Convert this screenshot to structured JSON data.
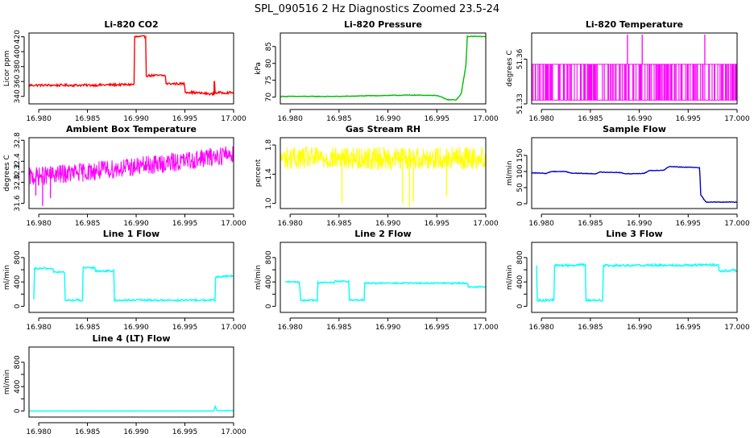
{
  "figure": {
    "title": "SPL_090516  2 Hz Diagnostics Zoomed 23.5-24"
  },
  "chart_data": [
    {
      "type": "line",
      "title": "Li-820 CO2",
      "xlabel": "",
      "ylabel": "Licor ppm",
      "color": "#ff0000",
      "style": "noisy",
      "xlim": [
        16.979,
        17.0
      ],
      "ylim": [
        330,
        425
      ],
      "xticks": [
        16.98,
        16.985,
        16.99,
        16.995,
        17.0
      ],
      "xtick_labels": [
        "16.980",
        "16.985",
        "16.990",
        "16.995",
        "17.000"
      ],
      "yticks": [
        340,
        360,
        380,
        400,
        420
      ],
      "ytick_labels": [
        "340",
        "360",
        "380",
        "400",
        "420"
      ],
      "series": [
        {
          "name": "CO2",
          "x": [
            16.979,
            16.98,
            16.985,
            16.9898,
            16.98981,
            16.991,
            16.99101,
            16.993,
            16.99301,
            16.995,
            16.99501,
            16.998,
            16.99801,
            16.9981,
            16.99811,
            17.0
          ],
          "y": [
            355,
            355,
            355,
            356,
            420,
            420,
            368,
            368,
            357,
            357,
            346,
            343,
            360,
            360,
            345,
            345
          ],
          "noise": 1.5
        }
      ],
      "spikes": [
        {
          "x": 16.998,
          "y": 360
        }
      ]
    },
    {
      "type": "line",
      "title": "Li-820 Pressure",
      "xlabel": "",
      "ylabel": "kPa",
      "color": "#00bb00",
      "style": "line",
      "xlim": [
        16.979,
        17.0
      ],
      "ylim": [
        68,
        89
      ],
      "xticks": [
        16.98,
        16.985,
        16.99,
        16.995,
        17.0
      ],
      "xtick_labels": [
        "16.980",
        "16.985",
        "16.990",
        "16.995",
        "17.000"
      ],
      "yticks": [
        70,
        75,
        80,
        85
      ],
      "ytick_labels": [
        "70",
        "75",
        "80",
        "85"
      ],
      "series": [
        {
          "name": "Pressure",
          "x": [
            16.979,
            16.985,
            16.988,
            16.9925,
            16.995,
            16.996,
            16.99601,
            16.997,
            16.9975,
            16.998,
            16.9981,
            16.999,
            17.0
          ],
          "y": [
            70.2,
            70.2,
            70.4,
            70.6,
            70.5,
            69.4,
            69.2,
            69.2,
            71,
            80,
            88,
            88,
            88
          ],
          "noise": 0.1
        }
      ],
      "spikes": []
    },
    {
      "type": "line",
      "title": "Li-820 Temperature",
      "xlabel": "",
      "ylabel": "degrees C",
      "color": "#ff00ff",
      "style": "alternating",
      "xlim": [
        16.979,
        17.0
      ],
      "ylim": [
        51.33,
        51.3775
      ],
      "xticks": [
        16.98,
        16.985,
        16.99,
        16.995,
        17.0
      ],
      "xtick_labels": [
        "16.980",
        "16.985",
        "16.990",
        "16.995",
        "17.000"
      ],
      "yticks": [
        51.33,
        51.36
      ],
      "ytick_labels": [
        "51.33",
        "51.36"
      ],
      "series": [
        {
          "name": "Temperature",
          "x": [
            16.979,
            17.0
          ],
          "y": [
            51.3565,
            51.3565
          ],
          "low": 51.3325,
          "noise": 0
        }
      ],
      "spikes": [
        {
          "x": 16.9888,
          "y": 51.3765
        },
        {
          "x": 16.9903,
          "y": 51.3765
        },
        {
          "x": 16.9967,
          "y": 51.3765
        }
      ]
    },
    {
      "type": "line",
      "title": "Ambient Box Temperature",
      "xlabel": "",
      "ylabel": "degrees C",
      "color": "#ff00ff",
      "style": "band",
      "xlim": [
        16.979,
        17.0
      ],
      "ylim": [
        31.5,
        32.85
      ],
      "xticks": [
        16.98,
        16.985,
        16.99,
        16.995,
        17.0
      ],
      "xtick_labels": [
        "16.980",
        "16.985",
        "16.990",
        "16.995",
        "17.000"
      ],
      "yticks": [
        31.6,
        32.0,
        32.2,
        32.4,
        32.8
      ],
      "ytick_labels": [
        "31.6",
        "32.0",
        "32.2",
        "32.4",
        "32.8"
      ],
      "series": [
        {
          "name": "Box Temp",
          "x": [
            16.979,
            16.985,
            16.99,
            16.995,
            17.0
          ],
          "y": [
            32.1,
            32.2,
            32.3,
            32.4,
            32.55
          ],
          "noise": 0.15
        }
      ],
      "spikes": [
        {
          "x": 16.9804,
          "y": 31.55
        },
        {
          "x": 16.9812,
          "y": 31.7
        },
        {
          "x": 16.9797,
          "y": 31.75
        }
      ]
    },
    {
      "type": "line",
      "title": "Gas Stream RH",
      "xlabel": "",
      "ylabel": "percent",
      "color": "#ffff00",
      "style": "band",
      "xlim": [
        16.979,
        17.0
      ],
      "ylim": [
        0.93,
        1.9
      ],
      "xticks": [
        16.98,
        16.985,
        16.99,
        16.995,
        17.0
      ],
      "xtick_labels": [
        "16.980",
        "16.985",
        "16.990",
        "16.995",
        "17.000"
      ],
      "yticks": [
        1.0,
        1.4,
        1.8
      ],
      "ytick_labels": [
        "1.0",
        "1.4",
        "1.8"
      ],
      "series": [
        {
          "name": "RH",
          "x": [
            16.979,
            17.0
          ],
          "y": [
            1.62,
            1.62
          ],
          "noise": 0.13
        }
      ],
      "spikes": [
        {
          "x": 16.9853,
          "y": 1.0
        },
        {
          "x": 16.9915,
          "y": 1.0
        },
        {
          "x": 16.9922,
          "y": 0.95
        },
        {
          "x": 16.9926,
          "y": 1.02
        },
        {
          "x": 16.996,
          "y": 1.1
        }
      ]
    },
    {
      "type": "line",
      "title": "Sample Flow",
      "xlabel": "",
      "ylabel": "ml/min",
      "color": "#0000cc",
      "style": "line",
      "xlim": [
        16.979,
        17.0
      ],
      "ylim": [
        -15,
        205
      ],
      "xticks": [
        16.98,
        16.985,
        16.99,
        16.995,
        17.0
      ],
      "xtick_labels": [
        "16.980",
        "16.985",
        "16.990",
        "16.995",
        "17.000"
      ],
      "yticks": [
        0,
        50,
        100,
        150
      ],
      "ytick_labels": [
        "0",
        "50",
        "100",
        "150"
      ],
      "series": [
        {
          "name": "Sample Flow",
          "x": [
            16.979,
            16.9805,
            16.981,
            16.9825,
            16.983,
            16.9855,
            16.986,
            16.988,
            16.9885,
            16.9905,
            16.991,
            16.9925,
            16.993,
            16.9962,
            16.99625,
            16.9968,
            17.0
          ],
          "y": [
            96,
            94,
            100,
            100,
            95,
            93,
            98,
            97,
            93,
            94,
            103,
            104,
            115,
            112,
            30,
            5,
            5
          ],
          "noise": 1
        }
      ],
      "spikes": []
    },
    {
      "type": "line",
      "title": "Line 1 Flow",
      "xlabel": "",
      "ylabel": "ml/min",
      "color": "#00ffff",
      "style": "line",
      "xlim": [
        16.979,
        17.0
      ],
      "ylim": [
        -100,
        1050
      ],
      "xticks": [
        16.98,
        16.985,
        16.99,
        16.995,
        17.0
      ],
      "xtick_labels": [
        "16.980",
        "16.985",
        "16.990",
        "16.995",
        "17.000"
      ],
      "yticks": [
        0,
        200,
        400,
        600,
        800
      ],
      "ytick_labels": [
        "0",
        "400",
        "800"
      ],
      "series": [
        {
          "name": "Line 1",
          "x": [
            16.9795,
            16.97951,
            16.9815,
            16.98151,
            16.9827,
            16.98271,
            16.9845,
            16.98451,
            16.9858,
            16.98581,
            16.9877,
            16.98771,
            16.9981,
            16.99811,
            17.0
          ],
          "y": [
            100,
            620,
            620,
            560,
            560,
            100,
            100,
            630,
            630,
            580,
            580,
            100,
            100,
            480,
            500
          ],
          "noise": 15
        }
      ],
      "spikes": []
    },
    {
      "type": "line",
      "title": "Line 2 Flow",
      "xlabel": "",
      "ylabel": "ml/min",
      "color": "#00ffff",
      "style": "line",
      "xlim": [
        16.979,
        17.0
      ],
      "ylim": [
        -100,
        1050
      ],
      "xticks": [
        16.98,
        16.985,
        16.99,
        16.995,
        17.0
      ],
      "xtick_labels": [
        "16.980",
        "16.985",
        "16.990",
        "16.995",
        "17.000"
      ],
      "yticks": [
        0,
        200,
        400,
        600,
        800
      ],
      "ytick_labels": [
        "0",
        "400",
        "800"
      ],
      "series": [
        {
          "name": "Line 2",
          "x": [
            16.9795,
            16.981,
            16.98101,
            16.9828,
            16.98281,
            16.9845,
            16.98451,
            16.986,
            16.98601,
            16.9876,
            16.98761,
            16.9982,
            16.99821,
            17.0
          ],
          "y": [
            400,
            400,
            100,
            100,
            390,
            390,
            410,
            410,
            100,
            100,
            380,
            380,
            320,
            320
          ],
          "noise": 12
        }
      ],
      "spikes": []
    },
    {
      "type": "line",
      "title": "Line 3 Flow",
      "xlabel": "",
      "ylabel": "ml/min",
      "color": "#00ffff",
      "style": "line",
      "xlim": [
        16.979,
        17.0
      ],
      "ylim": [
        -100,
        1050
      ],
      "xticks": [
        16.98,
        16.985,
        16.99,
        16.995,
        17.0
      ],
      "xtick_labels": [
        "16.980",
        "16.985",
        "16.990",
        "16.995",
        "17.000"
      ],
      "yticks": [
        0,
        200,
        400,
        600,
        800
      ],
      "ytick_labels": [
        "0",
        "400",
        "800"
      ],
      "series": [
        {
          "name": "Line 3",
          "x": [
            16.9795,
            16.97951,
            16.9797,
            16.9813,
            16.98131,
            16.9845,
            16.98451,
            16.9863,
            16.98631,
            16.9981,
            16.99811,
            17.0
          ],
          "y": [
            690,
            100,
            100,
            100,
            670,
            680,
            100,
            100,
            670,
            680,
            580,
            590
          ],
          "noise": 18
        }
      ],
      "spikes": []
    },
    {
      "type": "line",
      "title": "Line 4 (LT) Flow",
      "xlabel": "",
      "ylabel": "ml/min",
      "color": "#00ffff",
      "style": "line",
      "xlim": [
        16.979,
        17.0
      ],
      "ylim": [
        -100,
        1050
      ],
      "xticks": [
        16.98,
        16.985,
        16.99,
        16.995,
        17.0
      ],
      "xtick_labels": [
        "16.980",
        "16.985",
        "16.990",
        "16.995",
        "17.000"
      ],
      "yticks": [
        0,
        200,
        400,
        600,
        800
      ],
      "ytick_labels": [
        "0",
        "400",
        "800"
      ],
      "series": [
        {
          "name": "Line 4",
          "x": [
            16.979,
            16.998,
            16.9981,
            16.9983,
            17.0
          ],
          "y": [
            0,
            0,
            80,
            5,
            5
          ],
          "noise": 2
        }
      ],
      "spikes": []
    }
  ]
}
